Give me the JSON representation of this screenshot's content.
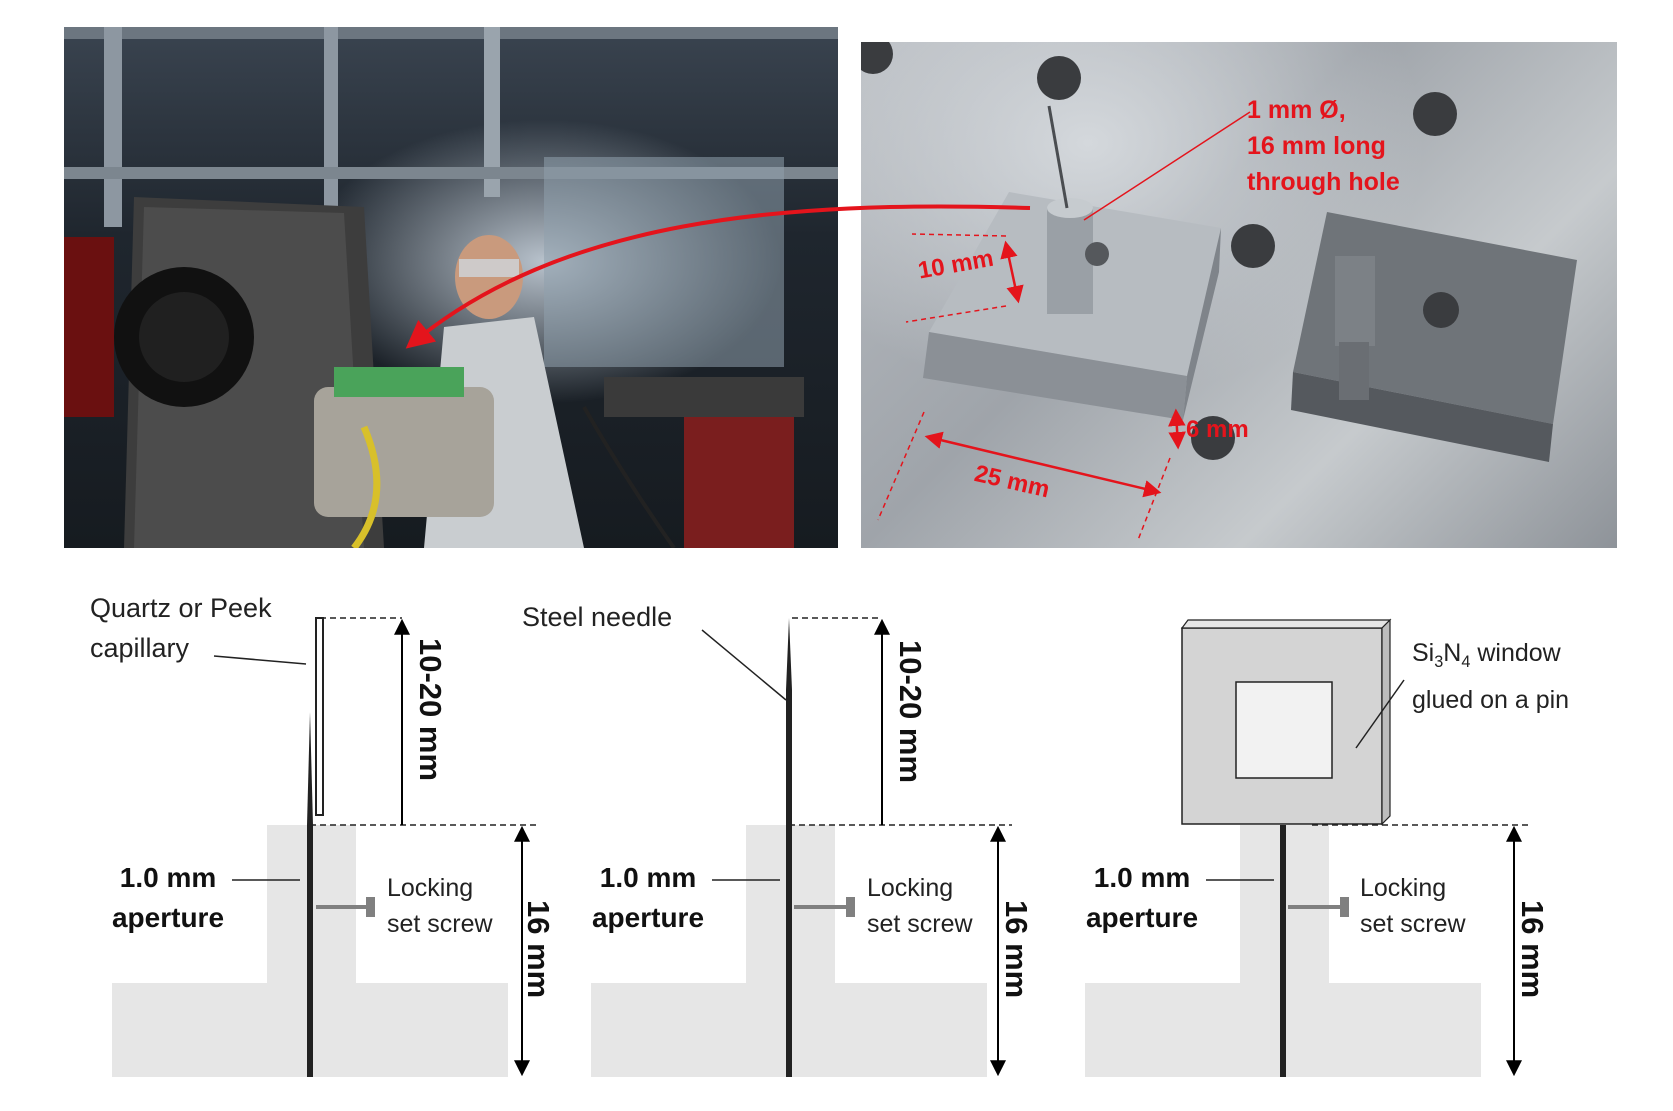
{
  "photo_annotations": {
    "hole_line1": "1 mm Ø,",
    "hole_line2": "16 mm long",
    "hole_line3": "through hole",
    "dim_height": "10 mm",
    "dim_thickness": "6 mm",
    "dim_width": "25 mm"
  },
  "panels": [
    {
      "top_label_line1": "Quartz or Peek",
      "top_label_line2": "capillary",
      "length_label": "10-20 mm",
      "aperture_line1": "1.0 mm",
      "aperture_line2": "aperture",
      "screw_line1": "Locking",
      "screw_line2": "set screw",
      "depth_label": "16 mm"
    },
    {
      "top_label": "Steel needle",
      "length_label": "10-20 mm",
      "aperture_line1": "1.0 mm",
      "aperture_line2": "aperture",
      "screw_line1": "Locking",
      "screw_line2": "set screw",
      "depth_label": "16 mm"
    },
    {
      "window_prefix": "Si",
      "window_sub1": "3",
      "window_mid": "N",
      "window_sub2": "4",
      "window_suffix": " window",
      "window_line2": "glued on a pin",
      "aperture_line1": "1.0 mm",
      "aperture_line2": "aperture",
      "screw_line1": "Locking",
      "screw_line2": "set screw",
      "depth_label": "16 mm"
    }
  ],
  "colors": {
    "annotation_red": "#e4141c",
    "block_gray": "#e6e6e6",
    "window_frame": "#d4d4d4",
    "window_pane": "#f2f2f2"
  }
}
